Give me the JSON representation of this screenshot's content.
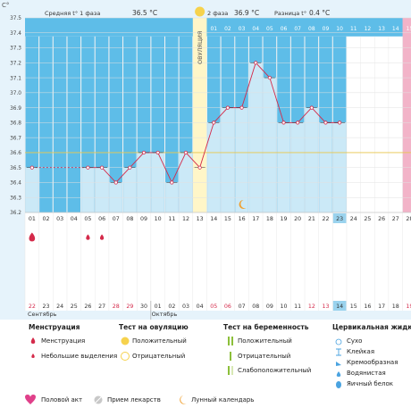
{
  "header": {
    "unit": "C°",
    "phase1_label": "Средняя t° 1 фаза",
    "phase1_value": "36.5 °C",
    "phase2_label": "2 фаза",
    "phase2_value": "36.9 °C",
    "diff_label": "Разница t°",
    "diff_value": "0.4 °C",
    "ovulation_label": "ОВУЛЯЦИЯ"
  },
  "phase2_day_numbers": [
    "01",
    "02",
    "03",
    "04",
    "05",
    "06",
    "07",
    "08",
    "09",
    "10",
    "11",
    "12",
    "13",
    "14",
    "15",
    "16"
  ],
  "cycle_days": [
    "01",
    "02",
    "03",
    "04",
    "05",
    "06",
    "07",
    "08",
    "09",
    "10",
    "11",
    "12",
    "13",
    "14",
    "15",
    "16",
    "17",
    "18",
    "19",
    "20",
    "21",
    "22",
    "23",
    "24",
    "25",
    "26",
    "27",
    "28",
    "29"
  ],
  "dates": [
    {
      "d": "22",
      "red": true
    },
    {
      "d": "23",
      "red": false
    },
    {
      "d": "24",
      "red": false
    },
    {
      "d": "25",
      "red": false
    },
    {
      "d": "26",
      "red": false
    },
    {
      "d": "27",
      "red": false
    },
    {
      "d": "28",
      "red": true
    },
    {
      "d": "29",
      "red": true
    },
    {
      "d": "30",
      "red": false
    },
    {
      "d": "01",
      "red": false
    },
    {
      "d": "02",
      "red": false
    },
    {
      "d": "03",
      "red": false
    },
    {
      "d": "04",
      "red": false
    },
    {
      "d": "05",
      "red": true
    },
    {
      "d": "06",
      "red": true
    },
    {
      "d": "07",
      "red": false
    },
    {
      "d": "08",
      "red": false
    },
    {
      "d": "09",
      "red": false
    },
    {
      "d": "10",
      "red": false
    },
    {
      "d": "11",
      "red": false
    },
    {
      "d": "12",
      "red": true
    },
    {
      "d": "13",
      "red": true
    },
    {
      "d": "14",
      "red": false
    },
    {
      "d": "15",
      "red": false
    },
    {
      "d": "16",
      "red": false
    },
    {
      "d": "17",
      "red": false
    },
    {
      "d": "18",
      "red": false
    },
    {
      "d": "19",
      "red": true
    },
    {
      "d": "20",
      "red": true
    }
  ],
  "months": {
    "first": "Сентябрь",
    "second": "Октябрь"
  },
  "highlighted_cycle_day": "23",
  "highlighted_date": "14",
  "legend": {
    "menstruation": {
      "title": "Менструация",
      "items": [
        "Менструация",
        "Небольшие выделения"
      ]
    },
    "ovulation_test": {
      "title": "Тест на овуляцию",
      "items": [
        "Положительный",
        "Отрицательный"
      ]
    },
    "pregnancy_test": {
      "title": "Тест на беременность",
      "items": [
        "Положительный",
        "Отрицательный",
        "Слабоположительный"
      ]
    },
    "cervical": {
      "title": "Цервикальная жидко",
      "items": [
        "Сухо",
        "Клейкая",
        "Кремообразная",
        "Водянистая",
        "Яичный белок"
      ]
    },
    "bottom": [
      "Половой акт",
      "Прием лекарств",
      "Лунный календарь"
    ]
  },
  "colors": {
    "frame": "#e6f3fb",
    "bar": "#cbe9f7",
    "bar_header": "#5ebde8",
    "pink": "#f2b3c8",
    "ovulation": "#fff6c8",
    "line": "#d42a4a",
    "sun": "#f6d24d",
    "moon": "#f0a030"
  },
  "chart_data": {
    "type": "line",
    "title": "",
    "xlabel": "",
    "ylabel": "C°",
    "ylim": [
      36.2,
      37.5
    ],
    "yticks": [
      "36.2",
      "36.3",
      "36.4",
      "36.5",
      "36.6",
      "36.7",
      "36.8",
      "36.9",
      "37.0",
      "37.1",
      "37.2",
      "37.3",
      "37.4",
      "37.5"
    ],
    "x": [
      1,
      5,
      6,
      7,
      8,
      9,
      10,
      11,
      12,
      13,
      14,
      15,
      16,
      17,
      18,
      19,
      20,
      21,
      22,
      23
    ],
    "values": [
      36.5,
      36.5,
      36.5,
      36.4,
      36.5,
      36.6,
      36.6,
      36.4,
      36.6,
      36.5,
      36.8,
      36.9,
      36.9,
      37.2,
      37.1,
      36.8,
      36.8,
      36.9,
      36.8,
      36.8
    ],
    "coverline": 36.6,
    "ovulation_day": 13,
    "menstruation_days": [
      1,
      5,
      6
    ]
  }
}
